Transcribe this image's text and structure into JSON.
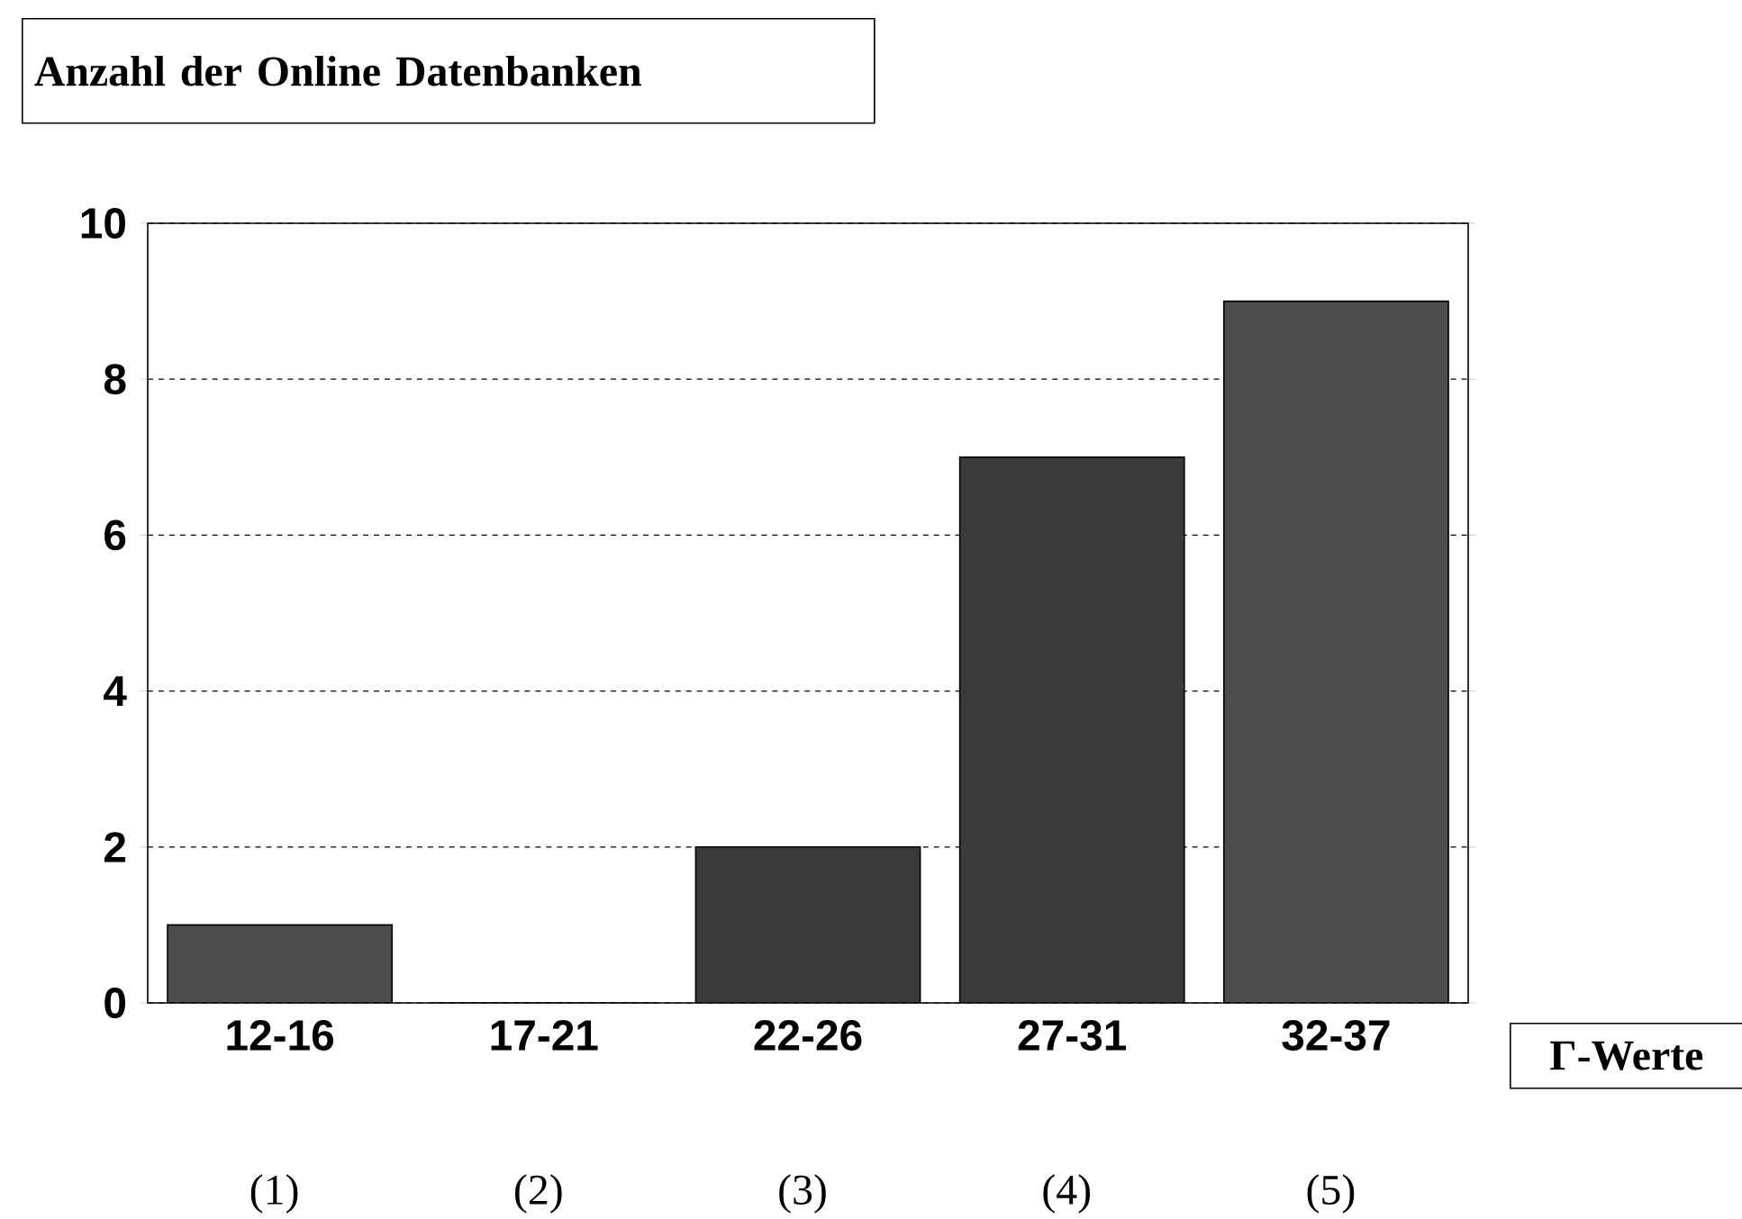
{
  "chart_data": {
    "type": "bar",
    "title": "Anzahl der Online Datenbanken",
    "xlabel": "Γ-Werte",
    "categories": [
      "12-16",
      "17-21",
      "22-26",
      "27-31",
      "32-37"
    ],
    "values": [
      1,
      0,
      2,
      7,
      9
    ],
    "colors": [
      "#4d4d4d",
      "#3a3a3a",
      "#3a3a3a",
      "#3a3a3a",
      "#4d4d4d"
    ],
    "ylim": [
      0,
      10
    ],
    "yticks": [
      0,
      2,
      4,
      6,
      8,
      10
    ],
    "grid": "y",
    "annotations": [
      "(1)",
      "(2)",
      "(3)",
      "(4)",
      "(5)"
    ]
  }
}
